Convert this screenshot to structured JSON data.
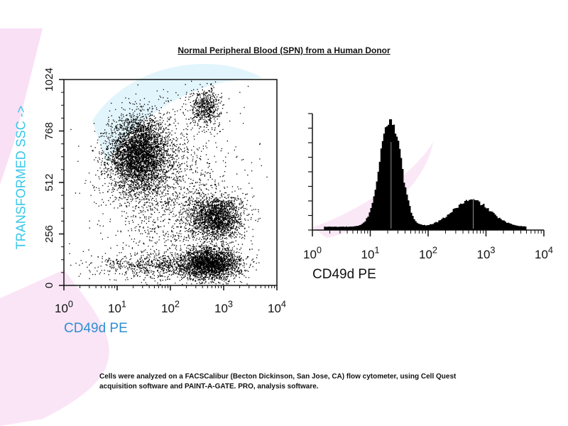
{
  "page": {
    "title": "Normal Peripheral Blood (SPN) from a Human Donor",
    "footnote_line1": "Cells were analyzed on a FACSCalibur (Becton Dickinson, San Jose, CA) flow cytometer, using Cell Quest",
    "footnote_line2": "acquisition software and PAINT-A-GATE. PRO, analysis software."
  },
  "colors": {
    "watermark_pink": "#f4c6ec",
    "watermark_blue": "#cfeefa",
    "ylabel": "#37c6e8",
    "xlabel_left": "#2f8fd1",
    "dots": "#000000"
  },
  "chart_data": [
    {
      "type": "scatter",
      "xlabel": "CD49d PE",
      "ylabel": "TRANSFORMED SSC ->",
      "x_scale": "log",
      "xlim": [
        1,
        10000
      ],
      "ylim": [
        0,
        1024
      ],
      "x_ticks": [
        1,
        10,
        100,
        1000,
        10000
      ],
      "x_tick_labels": [
        [
          "10",
          "0"
        ],
        [
          "10",
          "1"
        ],
        [
          "10",
          "2"
        ],
        [
          "10",
          "3"
        ],
        [
          "10",
          "4"
        ]
      ],
      "y_ticks": [
        0,
        256,
        512,
        768,
        1024
      ],
      "y_tick_labels": [
        "0",
        "256",
        "512",
        "768",
        "1024"
      ],
      "grid": false,
      "populations": [
        {
          "x_log10_center": 1.4,
          "y_center": 650,
          "x_log10_sd": 0.28,
          "y_sd": 95,
          "n": 4200
        },
        {
          "x_log10_center": 2.65,
          "y_center": 890,
          "x_log10_sd": 0.14,
          "y_sd": 45,
          "n": 550
        },
        {
          "x_log10_center": 2.85,
          "y_center": 340,
          "x_log10_sd": 0.25,
          "y_sd": 55,
          "n": 2000
        },
        {
          "x_log10_center": 2.75,
          "y_center": 110,
          "x_log10_sd": 0.28,
          "y_sd": 40,
          "n": 2400
        },
        {
          "x_log10_center": 1.8,
          "y_center": 100,
          "x_log10_sd": 0.6,
          "y_sd": 30,
          "n": 700
        },
        {
          "x_log10_center": 2.0,
          "y_center": 450,
          "x_log10_sd": 0.6,
          "y_sd": 230,
          "n": 1500
        }
      ]
    },
    {
      "type": "histogram",
      "xlabel": "CD49d PE",
      "ylabel": "",
      "x_scale": "log",
      "xlim": [
        1,
        10000
      ],
      "x_ticks": [
        1,
        10,
        100,
        1000,
        10000
      ],
      "x_tick_labels": [
        [
          "10",
          "0"
        ],
        [
          "10",
          "1"
        ],
        [
          "10",
          "2"
        ],
        [
          "10",
          "3"
        ],
        [
          "10",
          "4"
        ]
      ],
      "ylim": [
        0,
        1
      ],
      "grid": false,
      "peaks": [
        {
          "x_log10_center": 1.35,
          "x_log10_sd": 0.18,
          "relative_height": 1.0
        },
        {
          "x_log10_center": 2.75,
          "x_log10_sd": 0.32,
          "relative_height": 0.24
        }
      ],
      "baseline_relative_height": 0.03
    }
  ]
}
